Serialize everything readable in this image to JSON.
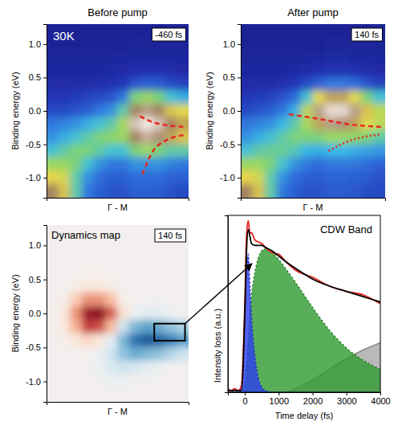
{
  "chart_data": [
    {
      "type": "heatmap",
      "title": "Before pump",
      "annotation": "30K",
      "delay_label": "-460 fs",
      "x_label": "Γ - M",
      "y_label": "Binding energy (eV)",
      "x": [
        0,
        1,
        2,
        3,
        4,
        5,
        6,
        7,
        8,
        9,
        10,
        11
      ],
      "y": [
        1.2,
        1.0,
        0.8,
        0.6,
        0.4,
        0.2,
        0.0,
        -0.2,
        -0.4,
        -0.6,
        -0.8,
        -1.0,
        -1.2
      ],
      "cells": [
        [
          0.05,
          0.05,
          0.05,
          0.05,
          0.05,
          0.05,
          0.05,
          0.05,
          0.05,
          0.05,
          0.05,
          0.05
        ],
        [
          0.05,
          0.05,
          0.05,
          0.05,
          0.05,
          0.05,
          0.05,
          0.06,
          0.06,
          0.06,
          0.06,
          0.06
        ],
        [
          0.06,
          0.06,
          0.06,
          0.06,
          0.06,
          0.07,
          0.07,
          0.08,
          0.08,
          0.08,
          0.08,
          0.08
        ],
        [
          0.08,
          0.08,
          0.08,
          0.08,
          0.08,
          0.09,
          0.1,
          0.12,
          0.12,
          0.12,
          0.11,
          0.1
        ],
        [
          0.1,
          0.1,
          0.1,
          0.11,
          0.12,
          0.13,
          0.15,
          0.22,
          0.25,
          0.24,
          0.2,
          0.18
        ],
        [
          0.15,
          0.15,
          0.16,
          0.18,
          0.2,
          0.22,
          0.3,
          0.55,
          0.6,
          0.55,
          0.45,
          0.4
        ],
        [
          0.2,
          0.2,
          0.22,
          0.25,
          0.3,
          0.35,
          0.5,
          0.85,
          0.9,
          0.85,
          0.75,
          0.7
        ],
        [
          0.3,
          0.32,
          0.35,
          0.4,
          0.45,
          0.5,
          0.62,
          0.95,
          1.0,
          0.95,
          0.85,
          0.8
        ],
        [
          0.35,
          0.4,
          0.45,
          0.5,
          0.55,
          0.58,
          0.6,
          0.85,
          0.92,
          0.88,
          0.8,
          0.75
        ],
        [
          0.45,
          0.5,
          0.55,
          0.55,
          0.5,
          0.45,
          0.45,
          0.55,
          0.6,
          0.55,
          0.5,
          0.5
        ],
        [
          0.6,
          0.6,
          0.55,
          0.45,
          0.35,
          0.3,
          0.3,
          0.35,
          0.35,
          0.35,
          0.32,
          0.3
        ],
        [
          0.72,
          0.68,
          0.5,
          0.35,
          0.28,
          0.25,
          0.25,
          0.28,
          0.28,
          0.28,
          0.26,
          0.25
        ],
        [
          0.85,
          0.75,
          0.5,
          0.3,
          0.25,
          0.22,
          0.22,
          0.25,
          0.25,
          0.25,
          0.22,
          0.2
        ]
      ],
      "zlim": [
        0,
        1
      ],
      "xlim": [
        -0.5,
        11.5
      ],
      "ylim": [
        -1.3,
        1.3
      ],
      "xticks": [],
      "yticks": [
        {
          "value": 1,
          "label": "1.0"
        },
        0.5,
        {
          "value": 0,
          "label": "0.0"
        },
        -0.5,
        {
          "value": -1,
          "label": "-1.0"
        }
      ],
      "tick_labels": "y",
      "series": [
        {
          "type": "line",
          "color": "#e8261c",
          "line_style": "dashed",
          "x": [
            7.4,
            8.5,
            9.5,
            11.2
          ],
          "values": [
            -0.08,
            -0.17,
            -0.21,
            -0.24
          ]
        },
        {
          "type": "line",
          "color": "#e8261c",
          "line_style": "dashed",
          "x": [
            7.6,
            8.5,
            9.5,
            11.2
          ],
          "values": [
            -0.95,
            -0.6,
            -0.45,
            -0.36
          ]
        }
      ]
    },
    {
      "type": "heatmap",
      "title": "After pump",
      "delay_label": "140 fs",
      "x_label": "Γ - M",
      "y_label": "Binding energy (eV)",
      "x": [
        0,
        1,
        2,
        3,
        4,
        5,
        6,
        7,
        8,
        9,
        10,
        11
      ],
      "y": [
        1.2,
        1.0,
        0.8,
        0.6,
        0.4,
        0.2,
        0.0,
        -0.2,
        -0.4,
        -0.6,
        -0.8,
        -1.0,
        -1.2
      ],
      "cells": [
        [
          0.05,
          0.05,
          0.05,
          0.05,
          0.05,
          0.05,
          0.05,
          0.05,
          0.05,
          0.05,
          0.05,
          0.05
        ],
        [
          0.05,
          0.05,
          0.05,
          0.05,
          0.05,
          0.05,
          0.05,
          0.06,
          0.06,
          0.06,
          0.06,
          0.06
        ],
        [
          0.06,
          0.06,
          0.06,
          0.06,
          0.06,
          0.07,
          0.08,
          0.09,
          0.09,
          0.08,
          0.08,
          0.08
        ],
        [
          0.08,
          0.08,
          0.08,
          0.08,
          0.09,
          0.1,
          0.12,
          0.14,
          0.14,
          0.13,
          0.11,
          0.1
        ],
        [
          0.1,
          0.1,
          0.1,
          0.12,
          0.15,
          0.2,
          0.25,
          0.3,
          0.3,
          0.28,
          0.22,
          0.18
        ],
        [
          0.15,
          0.16,
          0.18,
          0.22,
          0.28,
          0.45,
          0.7,
          0.8,
          0.8,
          0.7,
          0.55,
          0.45
        ],
        [
          0.2,
          0.22,
          0.25,
          0.3,
          0.4,
          0.65,
          0.9,
          0.98,
          0.98,
          0.9,
          0.75,
          0.65
        ],
        [
          0.3,
          0.32,
          0.35,
          0.42,
          0.5,
          0.62,
          0.8,
          0.9,
          0.88,
          0.8,
          0.7,
          0.65
        ],
        [
          0.35,
          0.4,
          0.45,
          0.5,
          0.55,
          0.55,
          0.55,
          0.6,
          0.6,
          0.58,
          0.55,
          0.5
        ],
        [
          0.45,
          0.5,
          0.52,
          0.52,
          0.48,
          0.42,
          0.4,
          0.42,
          0.42,
          0.4,
          0.38,
          0.36
        ],
        [
          0.6,
          0.6,
          0.55,
          0.45,
          0.35,
          0.3,
          0.28,
          0.3,
          0.3,
          0.3,
          0.28,
          0.26
        ],
        [
          0.72,
          0.68,
          0.5,
          0.35,
          0.28,
          0.25,
          0.24,
          0.26,
          0.26,
          0.25,
          0.24,
          0.22
        ],
        [
          0.85,
          0.75,
          0.5,
          0.3,
          0.25,
          0.22,
          0.22,
          0.24,
          0.24,
          0.23,
          0.21,
          0.2
        ]
      ],
      "zlim": [
        0,
        1
      ],
      "xlim": [
        -0.5,
        11.5
      ],
      "ylim": [
        -1.3,
        1.3
      ],
      "xticks": [],
      "yticks": [
        {
          "value": 1,
          "label": "1.0"
        },
        0.5,
        {
          "value": 0,
          "label": "0.0"
        },
        -0.5,
        {
          "value": -1,
          "label": "-1.0"
        }
      ],
      "tick_labels": "y",
      "series": [
        {
          "type": "line",
          "color": "#e8261c",
          "line_style": "dashed",
          "x": [
            3.5,
            6,
            8.5,
            11.2
          ],
          "values": [
            -0.05,
            -0.12,
            -0.2,
            -0.24
          ]
        },
        {
          "type": "line",
          "color": "#e8261c",
          "line_style": "dotted",
          "x": [
            6.8,
            8.5,
            10,
            11.2
          ],
          "values": [
            -0.6,
            -0.45,
            -0.38,
            -0.35
          ]
        }
      ]
    },
    {
      "type": "heatmap",
      "title": "Dynamics map",
      "delay_label": "140 fs",
      "x_label": "Γ - M",
      "y_label": "Binding energy (eV)",
      "x": [
        0,
        1,
        2,
        3,
        4,
        5,
        6,
        7,
        8,
        9,
        10,
        11
      ],
      "y": [
        1.2,
        1.0,
        0.8,
        0.6,
        0.4,
        0.2,
        0.0,
        -0.2,
        -0.4,
        -0.6,
        -0.8,
        -1.0,
        -1.2
      ],
      "cells": [
        [
          0,
          0,
          0,
          0,
          0,
          0,
          0,
          0,
          0,
          0,
          0,
          0
        ],
        [
          0,
          0,
          0,
          0,
          0,
          0,
          0,
          0,
          0,
          0,
          0,
          0
        ],
        [
          0,
          0,
          0,
          0,
          0,
          0,
          0,
          0,
          0,
          0,
          0,
          0
        ],
        [
          0,
          0,
          0,
          0.02,
          0.02,
          0,
          0,
          0,
          0,
          0,
          0,
          0
        ],
        [
          0,
          0,
          0.05,
          0.1,
          0.1,
          0.05,
          0,
          0,
          0,
          0,
          0,
          0
        ],
        [
          0,
          0.05,
          0.25,
          0.45,
          0.45,
          0.3,
          0.05,
          0,
          0,
          0,
          0,
          0
        ],
        [
          0,
          0.1,
          0.45,
          0.85,
          0.9,
          0.6,
          0.15,
          -0.05,
          -0.1,
          -0.1,
          -0.05,
          0
        ],
        [
          0,
          0.1,
          0.35,
          0.7,
          0.65,
          0.3,
          -0.2,
          -0.45,
          -0.55,
          -0.5,
          -0.4,
          -0.3
        ],
        [
          0,
          0.05,
          0.1,
          0.2,
          0.1,
          -0.1,
          -0.45,
          -0.75,
          -0.85,
          -0.8,
          -0.7,
          -0.55
        ],
        [
          0,
          0,
          0,
          0.02,
          -0.05,
          -0.2,
          -0.4,
          -0.5,
          -0.45,
          -0.4,
          -0.3,
          -0.2
        ],
        [
          0,
          0,
          0,
          0,
          -0.05,
          -0.15,
          -0.2,
          -0.15,
          -0.1,
          -0.05,
          0,
          0
        ],
        [
          0,
          0,
          0,
          0,
          0,
          -0.05,
          -0.05,
          0,
          0,
          0,
          0,
          0
        ],
        [
          0,
          0,
          0,
          0,
          0,
          0,
          0,
          0,
          0,
          0,
          0,
          0
        ]
      ],
      "zlim": [
        -1,
        1
      ],
      "box": {
        "x": [
          8.6,
          11.2
        ],
        "y": [
          -0.4,
          -0.15
        ]
      },
      "xlim": [
        -0.5,
        11.5
      ],
      "ylim": [
        -1.3,
        1.3
      ],
      "xticks": [],
      "yticks": [
        {
          "value": 1,
          "label": "1.0"
        },
        0.5,
        {
          "value": 0,
          "label": "0.0"
        },
        -0.5,
        {
          "value": -1,
          "label": "-1.0"
        }
      ],
      "tick_labels": "y"
    },
    {
      "type": "line",
      "title": "CDW Band",
      "x_label": "Time delay (fs)",
      "y_label": "Intensity loss (a.u.)",
      "x": [
        -500,
        -400,
        -300,
        -200,
        -100,
        0,
        50,
        100,
        150,
        200,
        300,
        400,
        500,
        600,
        800,
        1000,
        1200,
        1500,
        2000,
        2500,
        3000,
        3500,
        4000
      ],
      "xlim": [
        -500,
        4000
      ],
      "ylim": [
        0,
        1
      ],
      "xticks": [
        0,
        1000,
        2000,
        3000,
        4000
      ],
      "yticks": [],
      "tick_labels": "x",
      "series": [
        {
          "type": "area",
          "color": "#a8a8a8",
          "line_style": "solid",
          "values": [
            0,
            0,
            0,
            0,
            0,
            0,
            0,
            0,
            0,
            0,
            0,
            0,
            0,
            0,
            0,
            0,
            0,
            0.02,
            0.07,
            0.13,
            0.19,
            0.24,
            0.28
          ]
        },
        {
          "type": "area",
          "color": "#2f9a2f",
          "line_style": "dotted",
          "values": [
            0,
            0,
            0,
            0,
            0,
            0.05,
            0.15,
            0.3,
            0.45,
            0.55,
            0.68,
            0.76,
            0.8,
            0.81,
            0.79,
            0.75,
            0.7,
            0.62,
            0.48,
            0.35,
            0.25,
            0.18,
            0.13
          ]
        },
        {
          "type": "area",
          "color": "#2a3cf0",
          "line_style": "dotted",
          "values": [
            0,
            0,
            0,
            0,
            0.05,
            0.45,
            0.7,
            0.78,
            0.6,
            0.42,
            0.2,
            0.08,
            0.03,
            0.01,
            0,
            0,
            0,
            0,
            0,
            0,
            0,
            0,
            0
          ]
        },
        {
          "type": "line",
          "color": "#e3201b",
          "line_style": "solid",
          "values": [
            0.02,
            0.01,
            0.02,
            0.01,
            0.03,
            0.5,
            0.88,
            0.97,
            0.9,
            0.9,
            0.86,
            0.85,
            0.84,
            0.82,
            0.79,
            0.78,
            0.74,
            0.69,
            0.65,
            0.6,
            0.57,
            0.55,
            0.5
          ]
        },
        {
          "type": "line",
          "color": "#000000",
          "line_style": "solid",
          "values": [
            0.01,
            0.01,
            0.01,
            0.01,
            0.01,
            0.45,
            0.8,
            0.92,
            0.88,
            0.84,
            0.83,
            0.83,
            0.83,
            0.82,
            0.8,
            0.77,
            0.74,
            0.7,
            0.64,
            0.6,
            0.57,
            0.54,
            0.51
          ]
        }
      ]
    }
  ]
}
